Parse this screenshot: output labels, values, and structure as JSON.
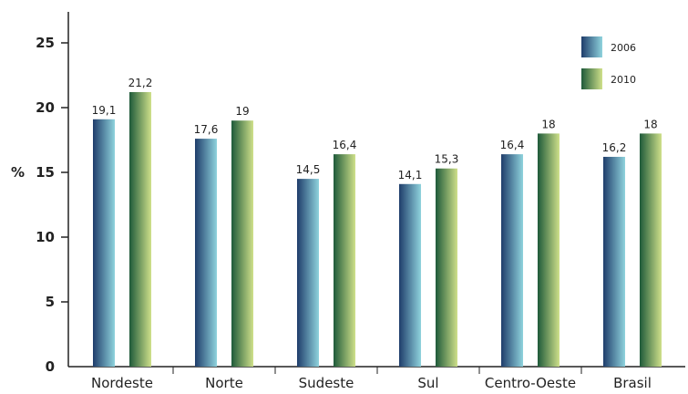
{
  "chart_data": {
    "type": "bar",
    "title": "",
    "xlabel": "",
    "ylabel": "%",
    "ylim": [
      0,
      25
    ],
    "yticks": [
      0,
      5,
      10,
      15,
      20,
      25
    ],
    "grid": false,
    "legend_position": "top-right",
    "categories": [
      "Nordeste",
      "Norte",
      "Sudeste",
      "Sul",
      "Centro-Oeste",
      "Brasil"
    ],
    "series": [
      {
        "name": "2006",
        "values": [
          19.1,
          17.6,
          14.5,
          14.1,
          16.4,
          16.2
        ],
        "labels": [
          "19,1",
          "17,6",
          "14,5",
          "14,1",
          "16,4",
          "16,2"
        ],
        "color_dark": "#1f3d6b",
        "color_light": "#8fd3dd"
      },
      {
        "name": "2010",
        "values": [
          21.2,
          19,
          16.4,
          15.3,
          18,
          18
        ],
        "labels": [
          "21,2",
          "19",
          "16,4",
          "15,3",
          "18",
          "18"
        ],
        "color_dark": "#1e5a3a",
        "color_light": "#cfe08a"
      }
    ]
  }
}
